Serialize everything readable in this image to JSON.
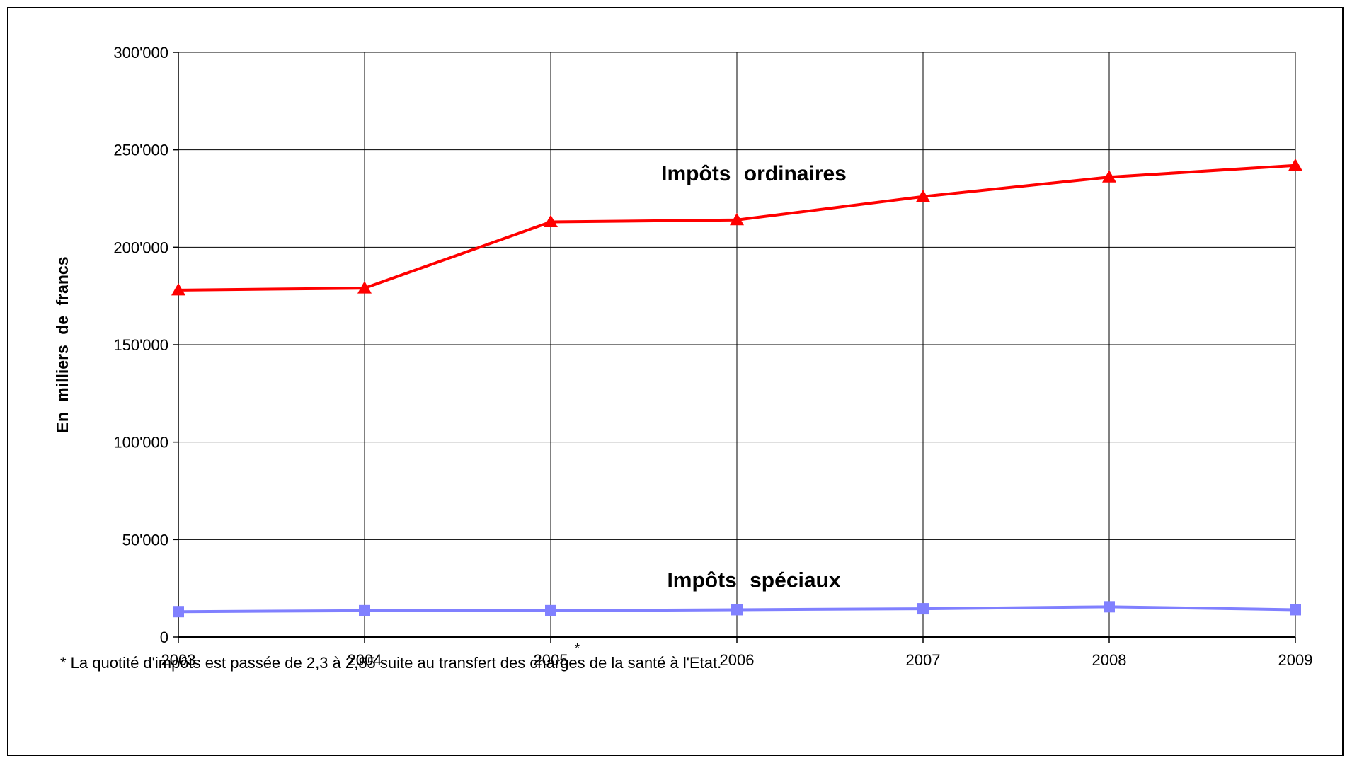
{
  "chart_data": {
    "type": "line",
    "x": [
      "2003",
      "2004",
      "2005",
      "2006",
      "2007",
      "2008",
      "2009"
    ],
    "x_marks": {
      "2005": "*"
    },
    "ylabel": "En milliers de francs",
    "ylim": [
      0,
      300000
    ],
    "yticks": [
      "0",
      "50'000",
      "100'000",
      "150'000",
      "200'000",
      "250'000",
      "300'000"
    ],
    "grid": true,
    "series": [
      {
        "name": "Impôts ordinaires",
        "values": [
          178000,
          179000,
          213000,
          214000,
          226000,
          236000,
          242000
        ],
        "color": "#ff0000",
        "marker": "triangle"
      },
      {
        "name": "Impôts spéciaux",
        "values": [
          13000,
          13500,
          13500,
          14000,
          14500,
          15500,
          14000
        ],
        "color": "#8080ff",
        "marker": "square"
      }
    ],
    "footnote": "* La quotité d'impôts est passée de 2,3 à 2,85 suite au transfert des charges de la santé à l'Etat."
  }
}
